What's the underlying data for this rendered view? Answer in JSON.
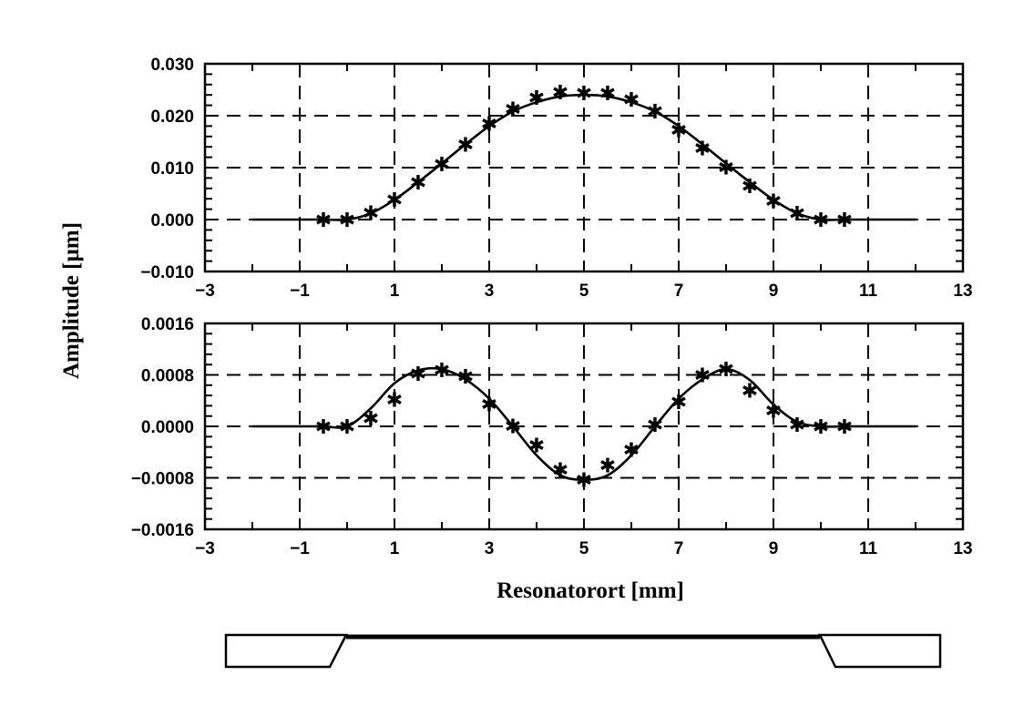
{
  "chart_data": [
    {
      "type": "line",
      "panel": "top",
      "xlim": [
        -3,
        13
      ],
      "ylim": [
        -0.01,
        0.03
      ],
      "x_ticks": [
        "-3",
        "-1",
        "1",
        "3",
        "5",
        "7",
        "9",
        "11",
        "13"
      ],
      "y_ticks": [
        "0.030",
        "0.020",
        "0.010",
        "0.000",
        "-0.010"
      ],
      "grid": true,
      "series": [
        {
          "style": "solid-line",
          "x": [
            -2,
            -1,
            -0.5,
            0,
            0.5,
            1,
            1.5,
            2,
            2.5,
            3,
            3.5,
            4,
            4.5,
            5,
            5.5,
            6,
            6.5,
            7,
            7.5,
            8,
            8.5,
            9,
            9.5,
            10,
            10.5,
            11,
            12
          ],
          "y": [
            0,
            0,
            0,
            0,
            0.0012,
            0.0038,
            0.0072,
            0.0108,
            0.0145,
            0.018,
            0.0208,
            0.0226,
            0.0237,
            0.024,
            0.0237,
            0.0226,
            0.0208,
            0.018,
            0.0145,
            0.0108,
            0.0072,
            0.0038,
            0.0012,
            0,
            0,
            0,
            0
          ]
        },
        {
          "style": "star-markers",
          "x": [
            -0.5,
            0,
            0.5,
            1,
            1.5,
            2,
            2.5,
            3,
            3.5,
            4,
            4.5,
            5,
            5.5,
            6,
            6.5,
            7,
            7.5,
            8,
            8.5,
            9,
            9.5,
            10,
            10.5
          ],
          "y": [
            0,
            0,
            0.0013,
            0.0039,
            0.0072,
            0.0107,
            0.0145,
            0.0185,
            0.0213,
            0.0235,
            0.0246,
            0.0244,
            0.0244,
            0.0232,
            0.0209,
            0.0173,
            0.0138,
            0.0101,
            0.0065,
            0.0036,
            0.0012,
            0,
            0
          ]
        }
      ]
    },
    {
      "type": "line",
      "panel": "bottom",
      "xlim": [
        -3,
        13
      ],
      "ylim": [
        -0.0016,
        0.0016
      ],
      "x_ticks": [
        "-3",
        "-1",
        "1",
        "3",
        "5",
        "7",
        "9",
        "11",
        "13"
      ],
      "y_ticks": [
        "0.0016",
        "0.0008",
        "0.0000",
        "-0.0008",
        "-0.0016"
      ],
      "xlabel": "Resonatorort  [mm]",
      "grid": true,
      "series": [
        {
          "style": "solid-line",
          "x": [
            -2,
            -1,
            -0.5,
            0,
            0.5,
            1,
            1.5,
            2,
            2.5,
            3,
            3.5,
            4,
            4.5,
            5,
            5.5,
            6,
            6.5,
            7,
            7.5,
            8,
            8.5,
            9,
            9.5,
            10,
            10.5,
            11,
            12
          ],
          "y": [
            0,
            0,
            0,
            0,
            0.00028,
            0.00067,
            0.00087,
            0.00089,
            0.00073,
            0.00043,
            0,
            -0.00045,
            -0.00076,
            -0.00083,
            -0.00076,
            -0.00045,
            0,
            0.00043,
            0.00073,
            0.00089,
            0.00072,
            0.00034,
            7e-05,
            0,
            0,
            0,
            0
          ]
        },
        {
          "style": "star-markers",
          "x": [
            -0.5,
            0,
            0.5,
            1,
            1.5,
            2,
            2.5,
            3,
            3.5,
            4,
            4.5,
            5,
            5.5,
            6,
            6.5,
            7,
            7.5,
            8,
            8.5,
            9,
            9.5,
            10,
            10.5
          ],
          "y": [
            0,
            0,
            0.00013,
            0.00042,
            0.00082,
            0.00088,
            0.00078,
            0.00035,
            1e-05,
            -0.00029,
            -0.00067,
            -0.00083,
            -0.0006,
            -0.00036,
            3e-05,
            0.00038,
            0.0008,
            0.00089,
            0.00056,
            0.00025,
            3e-05,
            0,
            0
          ]
        }
      ]
    }
  ],
  "shared_ylabel": "Amplitude  [µm]"
}
